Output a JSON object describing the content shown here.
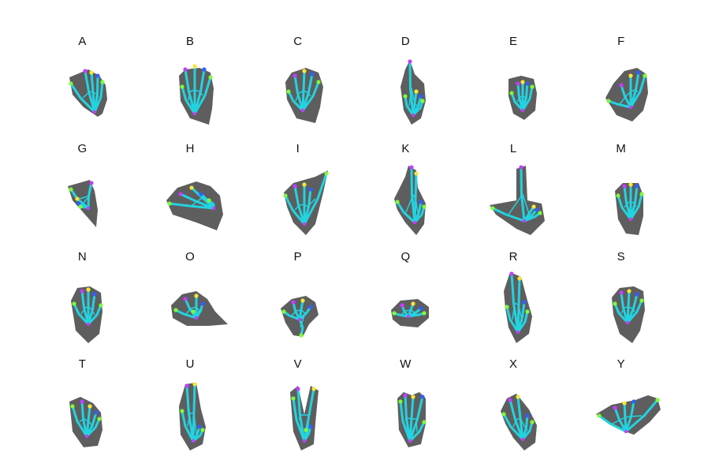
{
  "colors": {
    "silhouette": "#5e5e5e",
    "skeleton": "#22d3e0",
    "joint_a": "#7cfc3c",
    "joint_b": "#c040ff",
    "joint_c": "#f5e63a",
    "joint_d": "#3060ff"
  },
  "signs": [
    {
      "letter": "A",
      "icon": "hand-sign-a-icon"
    },
    {
      "letter": "B",
      "icon": "hand-sign-b-icon"
    },
    {
      "letter": "C",
      "icon": "hand-sign-c-icon"
    },
    {
      "letter": "D",
      "icon": "hand-sign-d-icon"
    },
    {
      "letter": "E",
      "icon": "hand-sign-e-icon"
    },
    {
      "letter": "F",
      "icon": "hand-sign-f-icon"
    },
    {
      "letter": "G",
      "icon": "hand-sign-g-icon"
    },
    {
      "letter": "H",
      "icon": "hand-sign-h-icon"
    },
    {
      "letter": "I",
      "icon": "hand-sign-i-icon"
    },
    {
      "letter": "K",
      "icon": "hand-sign-k-icon"
    },
    {
      "letter": "L",
      "icon": "hand-sign-l-icon"
    },
    {
      "letter": "M",
      "icon": "hand-sign-m-icon"
    },
    {
      "letter": "N",
      "icon": "hand-sign-n-icon"
    },
    {
      "letter": "O",
      "icon": "hand-sign-o-icon"
    },
    {
      "letter": "P",
      "icon": "hand-sign-p-icon"
    },
    {
      "letter": "Q",
      "icon": "hand-sign-q-icon"
    },
    {
      "letter": "R",
      "icon": "hand-sign-r-icon"
    },
    {
      "letter": "S",
      "icon": "hand-sign-s-icon"
    },
    {
      "letter": "T",
      "icon": "hand-sign-t-icon"
    },
    {
      "letter": "U",
      "icon": "hand-sign-u-icon"
    },
    {
      "letter": "V",
      "icon": "hand-sign-v-icon"
    },
    {
      "letter": "W",
      "icon": "hand-sign-w-icon"
    },
    {
      "letter": "X",
      "icon": "hand-sign-x-icon"
    },
    {
      "letter": "Y",
      "icon": "hand-sign-y-icon"
    }
  ]
}
